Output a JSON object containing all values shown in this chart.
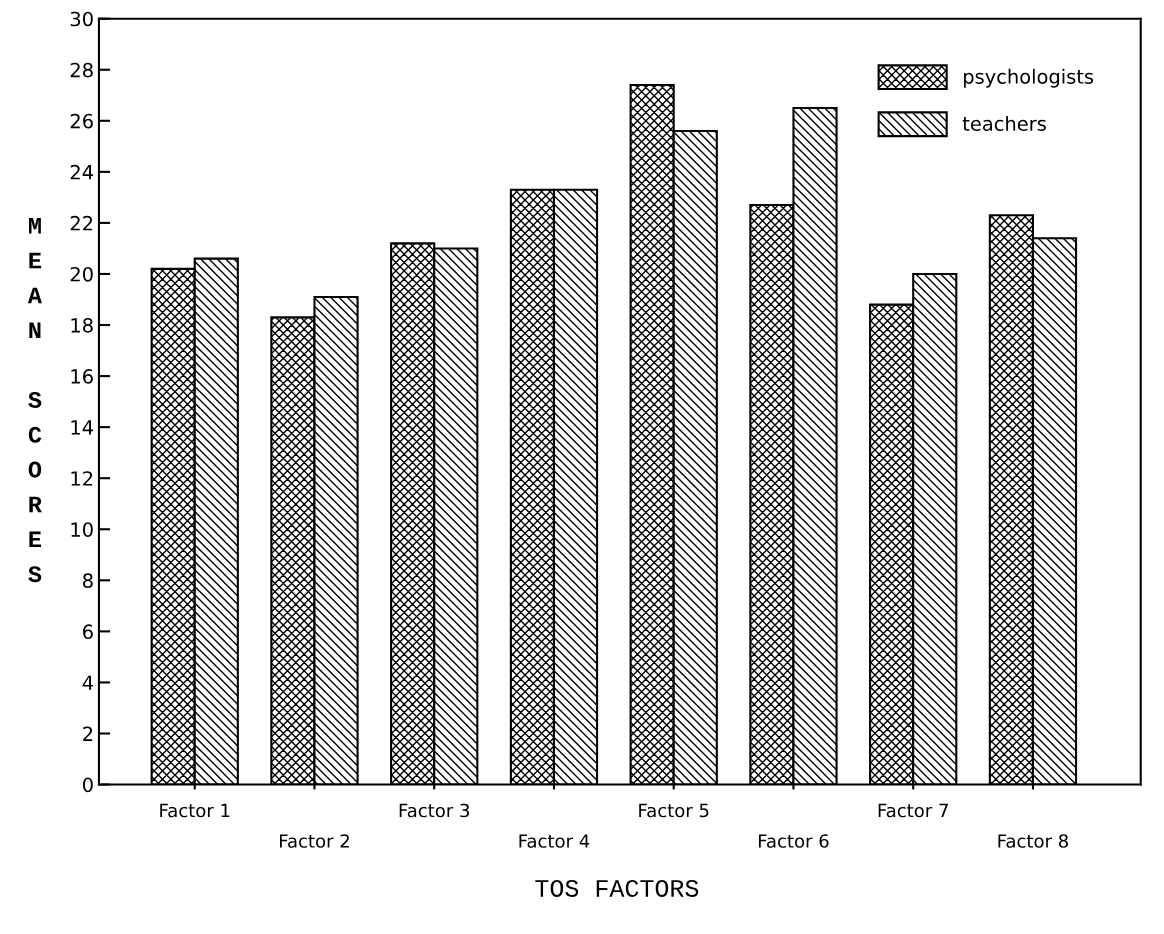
{
  "chart_data": {
    "type": "bar",
    "xlabel": "TOS FACTORS",
    "ylabel": "MEAN SCORES",
    "categories": [
      "Factor 1",
      "Factor 2",
      "Factor 3",
      "Factor 4",
      "Factor 5",
      "Factor 6",
      "Factor 7",
      "Factor 8"
    ],
    "series": [
      {
        "name": "psychologists",
        "color": "#000000",
        "values": [
          20.2,
          18.3,
          21.2,
          23.3,
          27.4,
          22.7,
          18.8,
          22.3
        ]
      },
      {
        "name": "teachers",
        "color": "#000000",
        "values": [
          20.6,
          19.1,
          21.0,
          23.3,
          25.6,
          26.5,
          20.0,
          21.4
        ]
      }
    ],
    "ylim": [
      0,
      30
    ],
    "yticks": [
      0,
      2,
      4,
      6,
      8,
      10,
      12,
      14,
      16,
      18,
      20,
      22,
      24,
      26,
      28,
      30
    ],
    "grid": false,
    "legend": "top right"
  }
}
